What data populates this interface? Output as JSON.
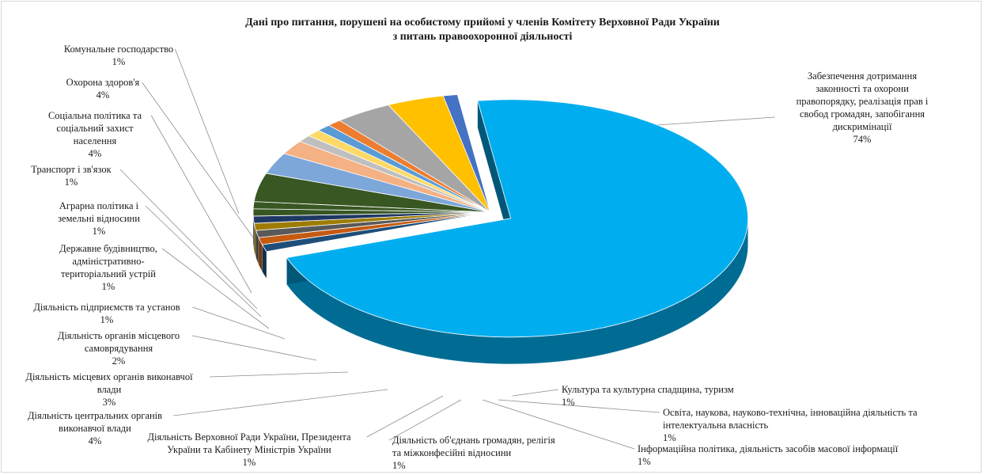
{
  "chart_data": {
    "type": "pie",
    "title": "Дані про питання, порушені  на особистому прийомі у членів Комітету Верховної Ради України з питань  правоохоронної діяльності",
    "title_lines": [
      "Дані про питання, порушені  на особистому прийомі у членів Комітету Верховної Ради України",
      "з питань  правоохоронної діяльності"
    ],
    "slices": [
      {
        "key": "law",
        "value": 74,
        "color": "#00aeef",
        "pct": "74%",
        "lines": [
          "Забезпечення дотримання",
          "законності та охорони",
          "правопорядку, реалізація прав і",
          "свобод громадян, запобігання",
          "дискримінації"
        ]
      },
      {
        "key": "culture",
        "value": 1,
        "color": "#1f4e79",
        "pct": "1%",
        "lines": [
          "Культура та культурна спадщина, туризм"
        ]
      },
      {
        "key": "education",
        "value": 1,
        "color": "#c55a11",
        "pct": "1%",
        "lines": [
          "Освіта, наукова, науково-технічна,  інноваційна  діяльність та",
          "інтелектуальна власність"
        ]
      },
      {
        "key": "info",
        "value": 1,
        "color": "#595959",
        "pct": "1%",
        "lines": [
          "Інформаційна  політика,  діяльність  засобів масової інформації"
        ]
      },
      {
        "key": "unlabeled1",
        "value": 1,
        "color": "#9e7c00"
      },
      {
        "key": "unlabeled2",
        "value": 1,
        "color": "#1f3864"
      },
      {
        "key": "assoc",
        "value": 1,
        "color": "#375623",
        "pct": "1%",
        "lines": [
          "Діяльність об'єднань громадян, релігія",
          "та міжконфесійні  відносини"
        ]
      },
      {
        "key": "vru",
        "value": 1,
        "color": "#385723",
        "pct": "1%",
        "lines": [
          "Діяльність  Верховної  Ради України,  Президента",
          "України  та Кабінету Міністрів  України"
        ]
      },
      {
        "key": "central",
        "value": 4,
        "color": "#385723",
        "pct": "4%",
        "lines": [
          "Діяльність  центральних  органів",
          "виконавчої влади"
        ]
      },
      {
        "key": "localexec",
        "value": 3,
        "color": "#7da7d9",
        "pct": "3%",
        "lines": [
          "Діяльність  місцевих  органів  виконавчої",
          "влади"
        ]
      },
      {
        "key": "selfgov",
        "value": 2,
        "color": "#f4b183",
        "pct": "2%",
        "lines": [
          "Діяльність  органів  місцевого",
          "самоврядування"
        ]
      },
      {
        "key": "enterprises",
        "value": 1,
        "color": "#bfbfbf",
        "pct": "1%",
        "lines": [
          "Діяльність  підприємств  та установ"
        ]
      },
      {
        "key": "stateconst",
        "value": 1,
        "color": "#ffd966",
        "pct": "1%",
        "lines": [
          "Державне будівництво,",
          "адміністративно-",
          "територіальний  устрій"
        ]
      },
      {
        "key": "agro",
        "value": 1,
        "color": "#5b9bd5",
        "pct": "1%",
        "lines": [
          "Аграрна політика і",
          "земельні  відносини"
        ]
      },
      {
        "key": "transport",
        "value": 1,
        "color": "#ed7d31",
        "pct": "1%",
        "lines": [
          "Транспорт  і зв'язок"
        ]
      },
      {
        "key": "social",
        "value": 4,
        "color": "#a5a5a5",
        "pct": "4%",
        "lines": [
          "Соціальна  політика  та",
          "соціальний  захист",
          "населення"
        ]
      },
      {
        "key": "health",
        "value": 4,
        "color": "#ffc000",
        "pct": "4%",
        "lines": [
          "Охорона здоров'я"
        ]
      },
      {
        "key": "communal",
        "value": 1,
        "color": "#4472c4",
        "pct": "1%",
        "lines": [
          "Комунальне господарство"
        ]
      }
    ],
    "legend": "none",
    "grid": false
  }
}
